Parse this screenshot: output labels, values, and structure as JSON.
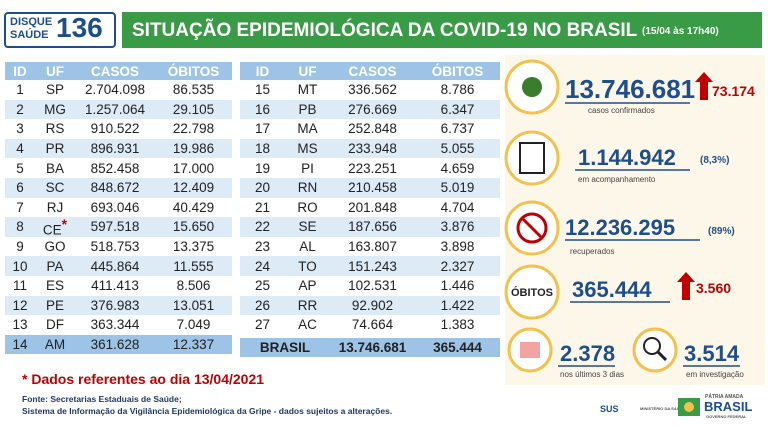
{
  "header": {
    "logo_top": "DISQUE",
    "logo_bottom": "SAÚDE",
    "logo_number": "136",
    "title": "SITUAÇÃO EPIDEMIOLÓGICA DA COVID-19 NO BRASIL",
    "date": "(15/04 às 17h40)"
  },
  "columns": [
    "ID",
    "UF",
    "CASOS",
    "ÓBITOS"
  ],
  "left_table": {
    "rows": [
      [
        "1",
        "SP",
        "2.704.098",
        "86.535"
      ],
      [
        "2",
        "MG",
        "1.257.064",
        "29.105"
      ],
      [
        "3",
        "RS",
        "910.522",
        "22.798"
      ],
      [
        "4",
        "PR",
        "896.931",
        "19.986"
      ],
      [
        "5",
        "BA",
        "852.458",
        "17.000"
      ],
      [
        "6",
        "SC",
        "848.672",
        "12.409"
      ],
      [
        "7",
        "RJ",
        "693.046",
        "40.429"
      ],
      [
        "8",
        "CE",
        "597.518",
        "15.650",
        "*"
      ],
      [
        "9",
        "GO",
        "518.753",
        "13.375"
      ],
      [
        "10",
        "PA",
        "445.864",
        "11.555"
      ],
      [
        "11",
        "ES",
        "411.413",
        "8.506"
      ],
      [
        "12",
        "PE",
        "376.983",
        "13.051"
      ],
      [
        "13",
        "DF",
        "363.344",
        "7.049"
      ],
      [
        "14",
        "AM",
        "361.628",
        "12.337"
      ]
    ]
  },
  "right_table": {
    "rows": [
      [
        "15",
        "MT",
        "336.562",
        "8.786"
      ],
      [
        "16",
        "PB",
        "276.669",
        "6.347"
      ],
      [
        "17",
        "MA",
        "252.848",
        "6.737"
      ],
      [
        "18",
        "MS",
        "233.948",
        "5.055"
      ],
      [
        "19",
        "PI",
        "223.251",
        "4.659"
      ],
      [
        "20",
        "RN",
        "210.458",
        "5.019"
      ],
      [
        "21",
        "RO",
        "201.848",
        "4.704"
      ],
      [
        "22",
        "SE",
        "187.656",
        "3.876"
      ],
      [
        "23",
        "AL",
        "163.807",
        "3.898"
      ],
      [
        "24",
        "TO",
        "151.243",
        "2.327"
      ],
      [
        "25",
        "AP",
        "102.531",
        "1.446"
      ],
      [
        "26",
        "RR",
        "92.902",
        "1.422"
      ],
      [
        "27",
        "AC",
        "74.664",
        "1.383"
      ]
    ],
    "total": [
      "BRASIL",
      "13.746.681",
      "365.444"
    ]
  },
  "stats": {
    "confirmed": {
      "value": "13.746.681",
      "increase": "73.174",
      "label": "casos confirmados"
    },
    "monitoring": {
      "value": "1.144.942",
      "share": "(8,3%)",
      "label": "em acompanhamento"
    },
    "recovered": {
      "value": "12.236.295",
      "share": "(89%)",
      "label": "recuperados"
    },
    "deaths": {
      "label": "ÓBITOS",
      "value": "365.444",
      "increase": "3.560"
    },
    "recent": {
      "value": "2.378",
      "label": "nos últimos 3 dias"
    },
    "investigation": {
      "value": "3.514",
      "label": "em investigação"
    }
  },
  "footnote": "* Dados referentes ao dia 13/04/2021",
  "source": [
    "Fonte: Secretarias Estaduais de Saúde;",
    "Sistema de Informação da Vigilância Epidemiológica da Gripe - dados sujeitos a alterações."
  ],
  "logos": {
    "sus": "SUS",
    "ministry": "MINISTÉRIO DA SAÚDE",
    "motto": "PÁTRIA AMADA",
    "country": "BRASIL",
    "government": "GOVERNO FEDERAL"
  }
}
